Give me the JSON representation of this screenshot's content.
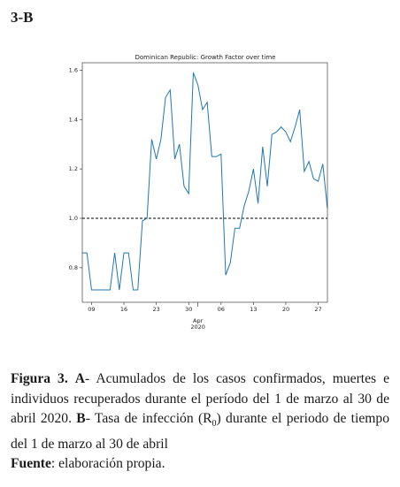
{
  "figure_label": "3-B",
  "chart_data": {
    "type": "line",
    "title": "Dominican Republic: Growth Factor over time",
    "x": [
      "2020-03-07",
      "2020-03-08",
      "2020-03-09",
      "2020-03-10",
      "2020-03-11",
      "2020-03-12",
      "2020-03-13",
      "2020-03-14",
      "2020-03-15",
      "2020-03-16",
      "2020-03-17",
      "2020-03-18",
      "2020-03-19",
      "2020-03-20",
      "2020-03-21",
      "2020-03-22",
      "2020-03-23",
      "2020-03-24",
      "2020-03-25",
      "2020-03-26",
      "2020-03-27",
      "2020-03-28",
      "2020-03-29",
      "2020-03-30",
      "2020-03-31",
      "2020-04-01",
      "2020-04-02",
      "2020-04-03",
      "2020-04-04",
      "2020-04-05",
      "2020-04-06",
      "2020-04-07",
      "2020-04-08",
      "2020-04-09",
      "2020-04-10",
      "2020-04-11",
      "2020-04-12",
      "2020-04-13",
      "2020-04-14",
      "2020-04-15",
      "2020-04-16",
      "2020-04-17",
      "2020-04-18",
      "2020-04-19",
      "2020-04-20",
      "2020-04-21",
      "2020-04-22",
      "2020-04-23",
      "2020-04-24",
      "2020-04-25",
      "2020-04-26",
      "2020-04-27",
      "2020-04-28",
      "2020-04-29"
    ],
    "series": [
      {
        "color": "#1f77b4",
        "values": [
          0.86,
          0.86,
          0.71,
          0.71,
          0.71,
          0.71,
          0.71,
          0.86,
          0.71,
          0.86,
          0.86,
          0.71,
          0.71,
          0.99,
          1.0,
          1.32,
          1.24,
          1.32,
          1.49,
          1.52,
          1.24,
          1.3,
          1.13,
          1.1,
          1.59,
          1.54,
          1.44,
          1.47,
          1.25,
          1.25,
          1.26,
          0.77,
          0.82,
          0.96,
          0.96,
          1.05,
          1.11,
          1.2,
          1.06,
          1.29,
          1.13,
          1.34,
          1.35,
          1.37,
          1.35,
          1.31,
          1.37,
          1.44,
          1.19,
          1.23,
          1.16,
          1.15,
          1.22,
          1.04
        ]
      }
    ],
    "xlim": [
      "2020-03-07",
      "2020-04-29"
    ],
    "xticks": [
      {
        "value": "2020-03-09",
        "label": "09"
      },
      {
        "value": "2020-03-16",
        "label": "16"
      },
      {
        "value": "2020-03-23",
        "label": "23"
      },
      {
        "value": "2020-03-30",
        "label": "30"
      },
      {
        "value": "2020-04-06",
        "label": "06"
      },
      {
        "value": "2020-04-13",
        "label": "13"
      },
      {
        "value": "2020-04-20",
        "label": "20"
      },
      {
        "value": "2020-04-27",
        "label": "27"
      }
    ],
    "month_tick": {
      "value": "2020-04-01",
      "month": "Apr",
      "year": "2020"
    },
    "ylim": [
      0.66,
      1.63
    ],
    "yticks": [
      {
        "value": 0.8,
        "label": "0.8"
      },
      {
        "value": 1.0,
        "label": "1.0"
      },
      {
        "value": 1.2,
        "label": "1.2"
      },
      {
        "value": 1.4,
        "label": "1.4"
      },
      {
        "value": 1.6,
        "label": "1.6"
      }
    ],
    "hline": {
      "value": 1.0,
      "color": "#000000",
      "style": "dashed"
    }
  },
  "caption": {
    "label": "Figura 3.",
    "part_a": "A",
    "text_a": "- Acumulados de los casos confirmados, muertes e individuos recuperados durante el período del 1 de marzo al 30 de abril 2020. ",
    "part_b": "B",
    "text_b": "- Tasa de infección (R",
    "subscript": "0",
    "text_b2": ") durante el periodo de tiempo del 1 de marzo al 30 de abril"
  },
  "source": {
    "label": "Fuente",
    "text": ": elaboración propia."
  }
}
